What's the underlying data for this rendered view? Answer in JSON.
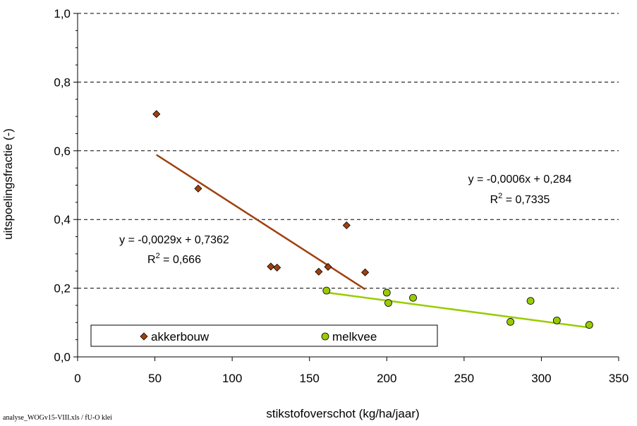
{
  "footnote": "analyse_WOGv15-VIII.xls / fU-O klei",
  "chart_data": {
    "type": "scatter",
    "title": "",
    "xlabel": "stikstofoverschot (kg/ha/jaar)",
    "ylabel": "uitspoelingsfractie (-)",
    "xlim": [
      0,
      350
    ],
    "ylim": [
      0,
      1.0
    ],
    "x_ticks": [
      0,
      50,
      100,
      150,
      200,
      250,
      300,
      350
    ],
    "y_ticks": [
      0,
      0.2,
      0.4,
      0.6,
      0.8,
      1.0
    ],
    "x_tick_labels": [
      "0",
      "50",
      "100",
      "150",
      "200",
      "250",
      "300",
      "350"
    ],
    "y_tick_labels": [
      "0,0",
      "0,2",
      "0,4",
      "0,6",
      "0,8",
      "1,0"
    ],
    "grid": "horizontal dashed",
    "legend_position": "bottom-left",
    "series": [
      {
        "name": "akkerbouw",
        "marker": "diamond",
        "color": "#a0400e",
        "points": [
          [
            51,
            0.707
          ],
          [
            78,
            0.49
          ],
          [
            125,
            0.263
          ],
          [
            129,
            0.26
          ],
          [
            156,
            0.248
          ],
          [
            162,
            0.262
          ],
          [
            174,
            0.383
          ],
          [
            186,
            0.246
          ]
        ],
        "trendline": {
          "x_range": [
            51,
            186
          ],
          "slope": -0.0029,
          "intercept": 0.7362,
          "color": "#a0400e",
          "equation": "y = -0,0029x + 0,7362",
          "r2_label": "R",
          "r2_sup": "2",
          "r2_value": " = 0,666"
        }
      },
      {
        "name": "melkvee",
        "marker": "circle",
        "color": "#99cc00",
        "points": [
          [
            161,
            0.193
          ],
          [
            200,
            0.187
          ],
          [
            201,
            0.157
          ],
          [
            217,
            0.172
          ],
          [
            280,
            0.102
          ],
          [
            293,
            0.163
          ],
          [
            310,
            0.106
          ],
          [
            331,
            0.093
          ]
        ],
        "trendline": {
          "x_range": [
            161,
            331
          ],
          "slope": -0.0006,
          "intercept": 0.284,
          "color": "#99cc00",
          "equation": "y = -0,0006x + 0,284",
          "r2_label": "R",
          "r2_sup": "2",
          "r2_value": " = 0,7335"
        }
      }
    ]
  }
}
